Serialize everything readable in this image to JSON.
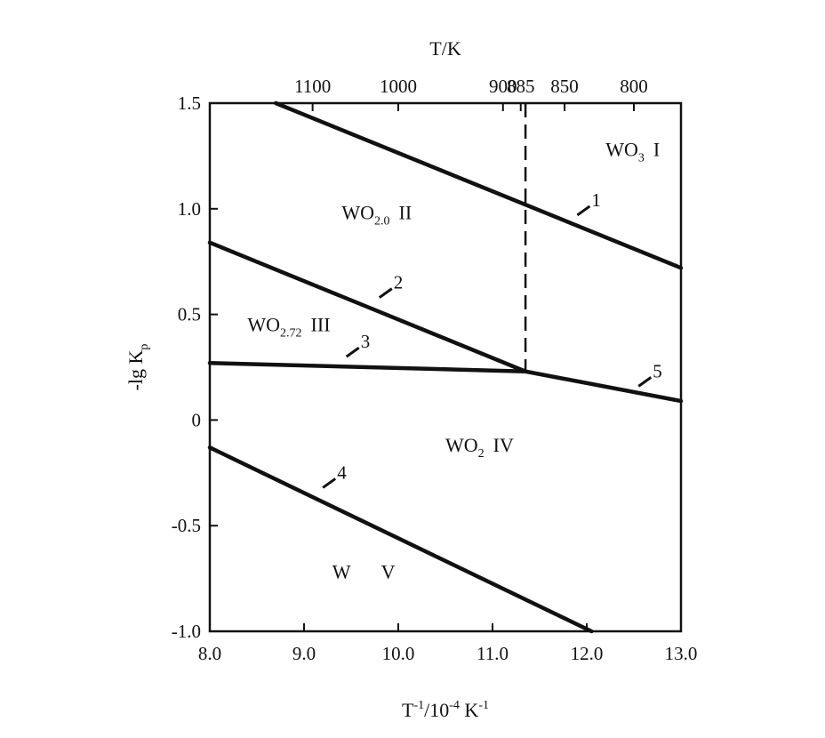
{
  "chart_data": {
    "type": "line",
    "title": "",
    "xlabel": {
      "main": "T",
      "sup1": "-1",
      "mid": "/10",
      "sup2": "-4",
      "unit": " K",
      "sup3": "-1"
    },
    "ylabel": {
      "main": "-lg K",
      "sub": "p"
    },
    "top_axis_label": "T/K",
    "xlim": [
      8.0,
      13.0
    ],
    "ylim": [
      -1.0,
      1.5
    ],
    "x_ticks": [
      {
        "value": 8.0,
        "label": "8.0"
      },
      {
        "value": 9.0,
        "label": "9.0"
      },
      {
        "value": 10.0,
        "label": "10.0"
      },
      {
        "value": 11.0,
        "label": "11.0"
      },
      {
        "value": 12.0,
        "label": "12.0"
      },
      {
        "value": 13.0,
        "label": "13.0"
      }
    ],
    "y_ticks": [
      {
        "value": 1.5,
        "label": "1.5"
      },
      {
        "value": 1.0,
        "label": "1.0"
      },
      {
        "value": 0.5,
        "label": "0.5"
      },
      {
        "value": 0.0,
        "label": "0"
      },
      {
        "value": -0.5,
        "label": "-0.5"
      },
      {
        "value": -1.0,
        "label": "-1.0"
      }
    ],
    "top_ticks": [
      {
        "T": 1100,
        "label": "1100"
      },
      {
        "T": 1000,
        "label": "1000"
      },
      {
        "T": 900,
        "label": "900"
      },
      {
        "T": 885,
        "label": "885"
      },
      {
        "T": 850,
        "label": "850"
      },
      {
        "T": 800,
        "label": "800"
      }
    ],
    "series": [
      {
        "name": "1",
        "x": [
          8.7,
          13.0
        ],
        "y": [
          1.5,
          0.72
        ],
        "label_at": [
          11.9,
          0.97
        ]
      },
      {
        "name": "2",
        "x": [
          8.0,
          11.35
        ],
        "y": [
          0.84,
          0.23
        ],
        "label_at": [
          9.8,
          0.58
        ]
      },
      {
        "name": "3",
        "x": [
          8.0,
          11.35
        ],
        "y": [
          0.27,
          0.23
        ],
        "label_at": [
          9.45,
          0.3
        ]
      },
      {
        "name": "4",
        "x": [
          8.0,
          12.05
        ],
        "y": [
          -0.13,
          -1.0
        ],
        "label_at": [
          9.2,
          -0.32
        ]
      },
      {
        "name": "5",
        "x": [
          11.35,
          13.0
        ],
        "y": [
          0.23,
          0.09
        ],
        "label_at": [
          12.55,
          0.16
        ]
      }
    ],
    "vertical_dashed_line": {
      "x": 11.35,
      "y_range": [
        0.23,
        1.5
      ]
    },
    "regions": [
      {
        "base": "WO",
        "sub": "3",
        "roman": "I",
        "at": [
          12.2,
          1.25
        ]
      },
      {
        "base": "WO",
        "sub": "2.0",
        "roman": "II",
        "at": [
          9.4,
          0.95
        ]
      },
      {
        "base": "WO",
        "sub": "2.72",
        "roman": "III",
        "at": [
          8.4,
          0.42
        ]
      },
      {
        "base": "WO",
        "sub": "2",
        "roman": "IV",
        "at": [
          10.5,
          -0.15
        ]
      },
      {
        "base": "W",
        "sub": "",
        "roman": "V",
        "at": [
          9.3,
          -0.75
        ]
      }
    ],
    "grid": false
  }
}
